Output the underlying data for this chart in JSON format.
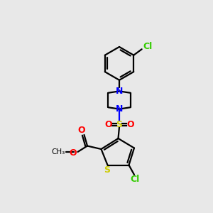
{
  "bg_color": "#e8e8e8",
  "bond_color": "#000000",
  "S_thio_color": "#cccc00",
  "S_SO2_color": "#cccc00",
  "N_color": "#0000ff",
  "O_color": "#ff0000",
  "Cl_color": "#33cc00",
  "figsize": [
    3.0,
    3.0
  ],
  "dpi": 100,
  "xlim": [
    0,
    10
  ],
  "ylim": [
    0,
    10
  ]
}
